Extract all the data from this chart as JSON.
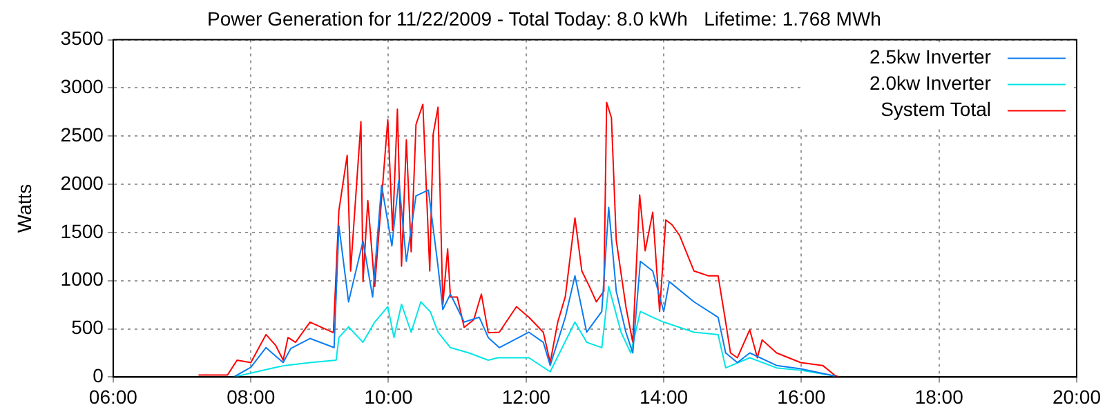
{
  "chart_data": {
    "type": "line",
    "title": "Power Generation for 11/22/2009 - Total Today: 8.0 kWh   Lifetime: 1.768 MWh",
    "ylabel": "Watts",
    "xlim": [
      6,
      20
    ],
    "xticks": [
      {
        "value": 6,
        "label": "06:00"
      },
      {
        "value": 8,
        "label": "08:00"
      },
      {
        "value": 10,
        "label": "10:00"
      },
      {
        "value": 12,
        "label": "12:00"
      },
      {
        "value": 14,
        "label": "14:00"
      },
      {
        "value": 16,
        "label": "16:00"
      },
      {
        "value": 18,
        "label": "18:00"
      },
      {
        "value": 20,
        "label": "20:00"
      }
    ],
    "ylim": [
      0,
      3500
    ],
    "yticks": [
      0,
      500,
      1000,
      1500,
      2000,
      2500,
      3000,
      3500
    ],
    "grid": true,
    "legend": "top right",
    "marker": "none",
    "line_style": "solid",
    "series": [
      {
        "name": "2.5kw Inverter",
        "color": "#0a7cf0",
        "x": [
          7.75,
          8.0,
          8.22,
          8.47,
          8.58,
          8.86,
          9.21,
          9.28,
          9.42,
          9.63,
          9.77,
          9.9,
          10.05,
          10.15,
          10.26,
          10.4,
          10.58,
          10.72,
          10.79,
          10.9,
          11.1,
          11.32,
          11.45,
          11.61,
          12.04,
          12.25,
          12.35,
          12.57,
          12.71,
          12.88,
          13.1,
          13.2,
          13.31,
          13.45,
          13.55,
          13.66,
          13.84,
          14.0,
          14.08,
          14.44,
          14.79,
          14.9,
          15.07,
          15.25,
          15.64,
          15.99,
          16.49
        ],
        "values": [
          0,
          100,
          305,
          150,
          295,
          400,
          305,
          1570,
          780,
          1410,
          830,
          1990,
          1360,
          2040,
          1200,
          1880,
          1940,
          1150,
          700,
          860,
          570,
          620,
          410,
          305,
          465,
          360,
          120,
          620,
          1050,
          465,
          680,
          1760,
          890,
          465,
          250,
          1200,
          1100,
          680,
          990,
          780,
          620,
          250,
          150,
          250,
          120,
          85,
          10
        ]
      },
      {
        "name": "2.0kw Inverter",
        "color": "#00e5e5",
        "x": [
          7.75,
          8.0,
          8.36,
          8.5,
          8.86,
          9.24,
          9.28,
          9.42,
          9.63,
          9.8,
          9.99,
          10.08,
          10.19,
          10.33,
          10.47,
          10.61,
          10.72,
          10.9,
          11.17,
          11.45,
          11.59,
          12.04,
          12.35,
          12.71,
          12.88,
          13.1,
          13.2,
          13.38,
          13.52,
          13.66,
          13.84,
          14.0,
          14.44,
          14.79,
          14.9,
          15.25,
          15.64,
          15.99,
          16.49
        ],
        "values": [
          0,
          40,
          100,
          120,
          150,
          175,
          410,
          520,
          360,
          570,
          730,
          410,
          755,
          465,
          780,
          675,
          465,
          305,
          250,
          175,
          200,
          200,
          55,
          570,
          360,
          305,
          940,
          465,
          250,
          680,
          620,
          570,
          465,
          440,
          95,
          200,
          95,
          70,
          10
        ]
      },
      {
        "name": "System Total",
        "color": "#ff0000",
        "x": [
          7.24,
          7.66,
          7.8,
          8.0,
          8.22,
          8.36,
          8.47,
          8.54,
          8.65,
          8.86,
          9.2,
          9.28,
          9.4,
          9.45,
          9.6,
          9.63,
          9.7,
          9.8,
          9.99,
          10.06,
          10.13,
          10.19,
          10.26,
          10.33,
          10.4,
          10.5,
          10.6,
          10.65,
          10.72,
          10.79,
          10.86,
          10.9,
          11.0,
          11.1,
          11.24,
          11.35,
          11.45,
          11.61,
          11.86,
          12.04,
          12.25,
          12.35,
          12.46,
          12.57,
          12.71,
          12.81,
          12.92,
          13.02,
          13.13,
          13.17,
          13.24,
          13.31,
          13.45,
          13.55,
          13.65,
          13.73,
          13.84,
          13.94,
          14.03,
          14.12,
          14.23,
          14.44,
          14.65,
          14.79,
          14.9,
          14.97,
          15.07,
          15.25,
          15.36,
          15.43,
          15.64,
          15.99,
          16.31,
          16.49,
          16.55
        ],
        "values": [
          20,
          20,
          175,
          150,
          440,
          330,
          175,
          410,
          360,
          570,
          460,
          1730,
          2300,
          1100,
          2650,
          990,
          1830,
          940,
          2670,
          1520,
          2780,
          1150,
          2460,
          1300,
          2620,
          2830,
          1100,
          2520,
          2800,
          750,
          1330,
          830,
          830,
          515,
          595,
          860,
          460,
          465,
          730,
          620,
          465,
          150,
          570,
          835,
          1650,
          1100,
          940,
          780,
          890,
          2850,
          2690,
          1420,
          730,
          360,
          1890,
          1310,
          1710,
          680,
          1630,
          1580,
          1470,
          1100,
          1050,
          1050,
          570,
          250,
          200,
          490,
          200,
          385,
          250,
          150,
          120,
          15,
          0
        ]
      }
    ]
  }
}
